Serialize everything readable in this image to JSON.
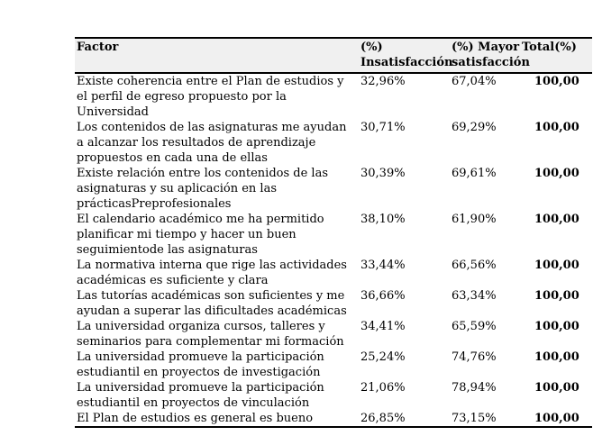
{
  "table": {
    "headers": {
      "factor": "Factor",
      "insatisfaccion": "(%) Insatisfacción",
      "mayor": "(%) Mayor satisfacción",
      "total": "Total(%)"
    },
    "rows": [
      {
        "factor": "Existe coherencia entre el Plan de estudios y el perfil de egreso propuesto por la Universidad",
        "insatisfaccion": "32,96%",
        "mayor": "67,04%",
        "total": "100,00"
      },
      {
        "factor": "Los contenidos de las asignaturas me ayudan a alcanzar los resultados de aprendizaje propuestos en cada una de ellas",
        "insatisfaccion": "30,71%",
        "mayor": "69,29%",
        "total": "100,00"
      },
      {
        "factor": "Existe relación entre los contenidos de las asignaturas y su aplicación en las prácticasPreprofesionales",
        "insatisfaccion": "30,39%",
        "mayor": "69,61%",
        "total": "100,00"
      },
      {
        "factor": "El calendario académico me ha permitido planificar mi tiempo y hacer un buen seguimientode las asignaturas",
        "insatisfaccion": "38,10%",
        "mayor": "61,90%",
        "total": "100,00"
      },
      {
        "factor": "La normativa interna que rige las actividades académicas es suficiente y clara",
        "insatisfaccion": "33,44%",
        "mayor": "66,56%",
        "total": "100,00"
      },
      {
        "factor": "Las tutorías académicas son suficientes y me ayudan a superar las dificultades académicas",
        "insatisfaccion": "36,66%",
        "mayor": "63,34%",
        "total": "100,00"
      },
      {
        "factor": "La universidad organiza cursos, talleres y seminarios para complementar mi formación",
        "insatisfaccion": "34,41%",
        "mayor": "65,59%",
        "total": "100,00"
      },
      {
        "factor": "La universidad promueve la participación estudiantil en proyectos de investigación",
        "insatisfaccion": "25,24%",
        "mayor": "74,76%",
        "total": "100,00"
      },
      {
        "factor": "La universidad promueve la participación estudiantil en proyectos de vinculación",
        "insatisfaccion": "21,06%",
        "mayor": "78,94%",
        "total": "100,00"
      },
      {
        "factor": "El Plan de estudios es general es bueno",
        "insatisfaccion": "26,85%",
        "mayor": "73,15%",
        "total": "100,00"
      }
    ]
  },
  "chart_data": {
    "type": "table",
    "columns": [
      "Factor",
      "(%) Insatisfacción",
      "(%) Mayor satisfacción",
      "Total(%)"
    ],
    "rows": [
      [
        "Existe coherencia entre el Plan de estudios y el perfil de egreso propuesto por la Universidad",
        "32,96%",
        "67,04%",
        "100,00"
      ],
      [
        "Los contenidos de las asignaturas me ayudan a alcanzar los resultados de aprendizaje propuestos en cada una de ellas",
        "30,71%",
        "69,29%",
        "100,00"
      ],
      [
        "Existe relación entre los contenidos de las asignaturas y su aplicación en las prácticasPreprofesionales",
        "30,39%",
        "69,61%",
        "100,00"
      ],
      [
        "El calendario académico me ha permitido planificar mi tiempo y hacer un buen seguimientode las asignaturas",
        "38,10%",
        "61,90%",
        "100,00"
      ],
      [
        "La normativa interna que rige las actividades académicas es suficiente y clara",
        "33,44%",
        "66,56%",
        "100,00"
      ],
      [
        "Las tutorías académicas son suficientes y me ayudan a superar las dificultades académicas",
        "36,66%",
        "63,34%",
        "100,00"
      ],
      [
        "La universidad organiza cursos, talleres y seminarios para complementar mi formación",
        "34,41%",
        "65,59%",
        "100,00"
      ],
      [
        "La universidad promueve la participación estudiantil en proyectos de investigación",
        "25,24%",
        "74,76%",
        "100,00"
      ],
      [
        "La universidad promueve la participación estudiantil en proyectos de vinculación",
        "21,06%",
        "78,94%",
        "100,00"
      ],
      [
        "El Plan de estudios es general es bueno",
        "26,85%",
        "73,15%",
        "100,00"
      ]
    ],
    "insatisfaccion_values": [
      32.96,
      30.71,
      30.39,
      38.1,
      33.44,
      36.66,
      34.41,
      25.24,
      21.06,
      26.85
    ],
    "mayor_satisfaccion_values": [
      67.04,
      69.29,
      69.61,
      61.9,
      66.56,
      63.34,
      65.59,
      74.76,
      78.94,
      73.15
    ],
    "total_values": [
      100.0,
      100.0,
      100.0,
      100.0,
      100.0,
      100.0,
      100.0,
      100.0,
      100.0,
      100.0
    ]
  },
  "style": {
    "header_background": "#f0f0f0",
    "border_color": "#000000",
    "text_color": "#000000",
    "page_background": "#ffffff"
  }
}
